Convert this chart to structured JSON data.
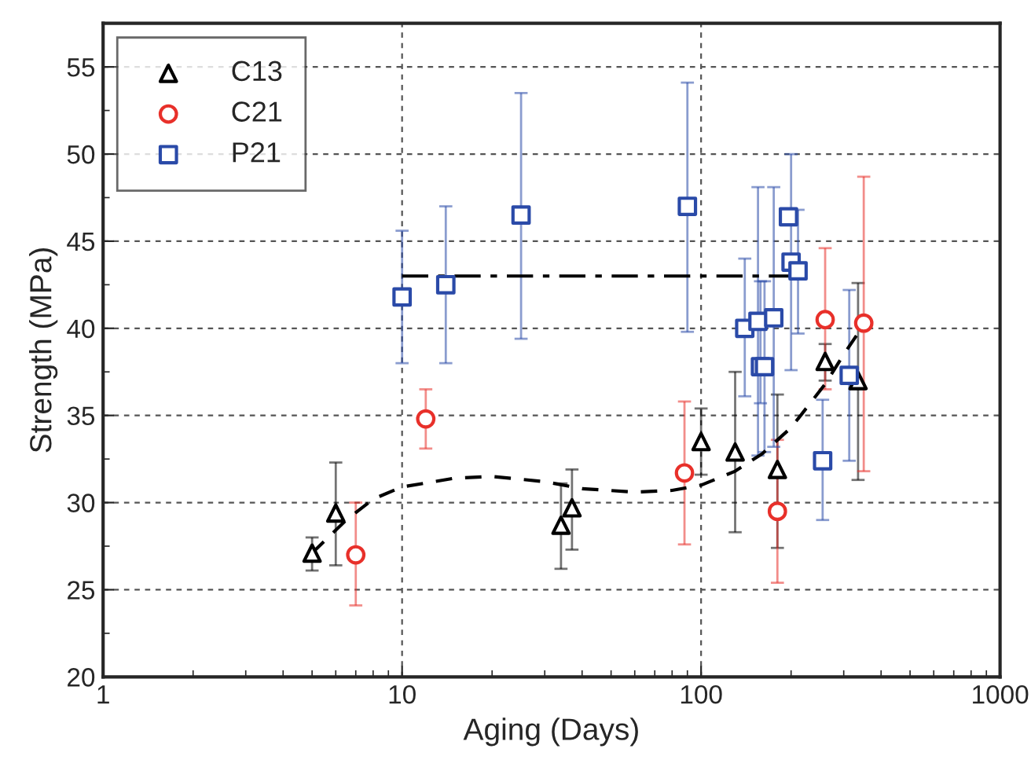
{
  "chart_data": {
    "type": "scatter",
    "xlabel": "Aging (Days)",
    "ylabel": "Strength (MPa)",
    "log": "x",
    "xlim": [
      1,
      1000
    ],
    "xticks": [
      1,
      10,
      100,
      1000
    ],
    "ylim": [
      20,
      57.5
    ],
    "yticks": [
      20,
      25,
      30,
      35,
      40,
      45,
      50,
      55
    ],
    "grid": true,
    "legend": "top left",
    "series": [
      {
        "name": "C13",
        "color": "#000000",
        "marker": "triangle",
        "x": [
          5,
          6,
          34,
          37,
          100,
          130,
          180,
          260,
          335
        ],
        "values": [
          27.1,
          29.4,
          28.7,
          29.7,
          33.5,
          32.9,
          31.9,
          38.1,
          37.0
        ],
        "errors": [
          [
            26.1,
            28.0
          ],
          [
            26.4,
            32.3
          ],
          [
            26.2,
            31.1
          ],
          [
            27.3,
            31.9
          ],
          [
            31.6,
            35.4
          ],
          [
            28.3,
            37.5
          ],
          [
            27.4,
            36.2
          ],
          [
            37.0,
            39.1
          ],
          [
            31.3,
            42.6
          ]
        ]
      },
      {
        "name": "C21",
        "color": "#e8302a",
        "marker": "circle",
        "x": [
          7,
          12,
          88,
          180,
          260,
          350
        ],
        "values": [
          27.0,
          34.8,
          31.7,
          29.5,
          40.5,
          40.3
        ],
        "errors": [
          [
            24.1,
            30.0
          ],
          [
            33.1,
            36.5
          ],
          [
            27.6,
            35.8
          ],
          [
            25.4,
            33.6
          ],
          [
            36.5,
            44.6
          ],
          [
            31.8,
            48.7
          ]
        ]
      },
      {
        "name": "P21",
        "color": "#2a4aa8",
        "marker": "square",
        "x": [
          10,
          14,
          25,
          90,
          140,
          155,
          158,
          163,
          175,
          196,
          200,
          211,
          255,
          313
        ],
        "values": [
          41.8,
          42.5,
          46.5,
          47.0,
          40.0,
          40.4,
          37.8,
          37.8,
          40.6,
          46.4,
          43.8,
          43.3,
          32.4,
          37.3
        ],
        "errors": [
          [
            38.0,
            45.6
          ],
          [
            38.0,
            47.0
          ],
          [
            39.4,
            53.5
          ],
          [
            39.8,
            54.1
          ],
          [
            36.1,
            44.0
          ],
          [
            32.7,
            48.1
          ],
          [
            35.7,
            42.7
          ],
          [
            32.9,
            42.7
          ],
          [
            33.2,
            48.1
          ],
          null,
          [
            37.6,
            50.0
          ],
          [
            39.7,
            46.8
          ],
          [
            29.0,
            35.9
          ],
          [
            32.4,
            42.2
          ]
        ]
      },
      {
        "type": "line",
        "color": "#000000",
        "line_style": "dashed",
        "marker": "none",
        "x": [
          5,
          6.5,
          8,
          10,
          15,
          20,
          30,
          40,
          60,
          80,
          100,
          130,
          160,
          200,
          260,
          300,
          350
        ],
        "values": [
          27.1,
          29.0,
          30.2,
          30.9,
          31.4,
          31.5,
          31.2,
          30.8,
          30.6,
          30.7,
          31.0,
          31.8,
          32.8,
          34.3,
          36.8,
          38.5,
          40.2
        ]
      },
      {
        "type": "line",
        "color": "#000000",
        "line_style": "dashdot",
        "marker": "none",
        "x": [
          10,
          210
        ],
        "values": [
          43,
          43
        ]
      }
    ]
  }
}
